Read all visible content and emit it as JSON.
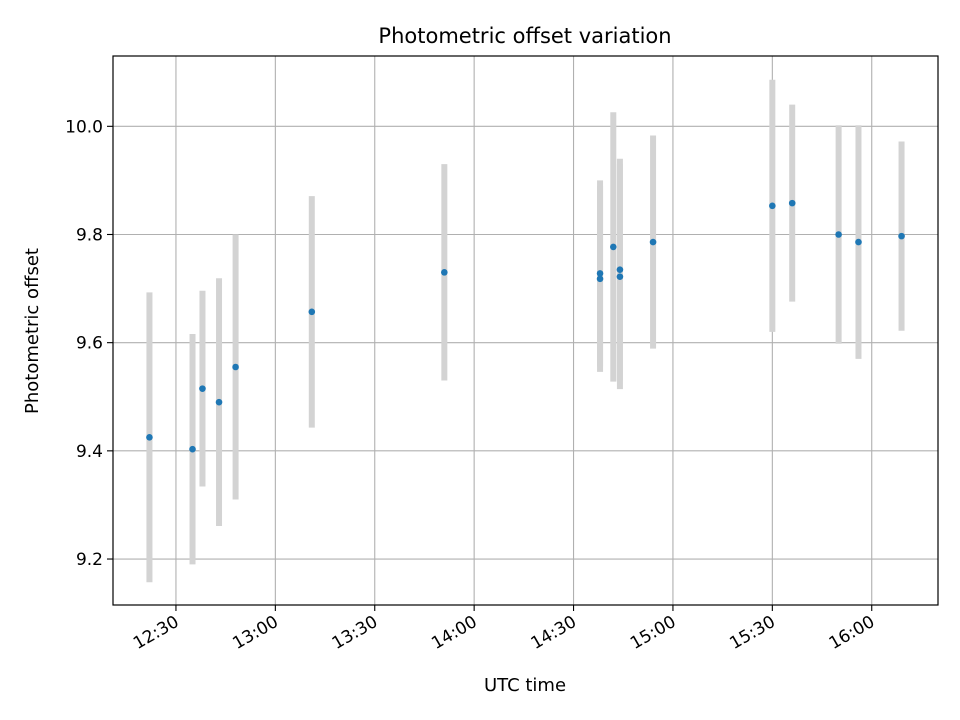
{
  "chart_data": {
    "type": "scatter",
    "title": "Photometric offset variation",
    "xlabel": "UTC time",
    "ylabel": "Photometric offset",
    "x_axis_type": "time",
    "xlim": [
      "12:11",
      "16:20"
    ],
    "ylim": [
      9.115,
      10.13
    ],
    "grid": true,
    "x_ticks": [
      "12:30",
      "13:00",
      "13:30",
      "14:00",
      "14:30",
      "15:00",
      "15:30",
      "16:00"
    ],
    "y_ticks": [
      "9.2",
      "9.4",
      "9.6",
      "9.8",
      "10.0"
    ],
    "colors": {
      "point": "#1f77b4",
      "errorbar": "#d3d3d3",
      "grid": "#b0b0b0"
    },
    "points": [
      {
        "x": "12:22",
        "y": 9.425,
        "err": 0.268
      },
      {
        "x": "12:35",
        "y": 9.403,
        "err": 0.213
      },
      {
        "x": "12:38",
        "y": 9.515,
        "err": 0.181
      },
      {
        "x": "12:43",
        "y": 9.49,
        "err": 0.229
      },
      {
        "x": "12:48",
        "y": 9.555,
        "err": 0.245
      },
      {
        "x": "13:11",
        "y": 9.657,
        "err": 0.214
      },
      {
        "x": "13:51",
        "y": 9.73,
        "err": 0.2
      },
      {
        "x": "14:38",
        "y": 9.718,
        "err": 0.172
      },
      {
        "x": "14:38",
        "y": 9.728,
        "err": 0.172
      },
      {
        "x": "14:42",
        "y": 9.777,
        "err": 0.249
      },
      {
        "x": "14:44",
        "y": 9.722,
        "err": 0.208
      },
      {
        "x": "14:44",
        "y": 9.735,
        "err": 0.205
      },
      {
        "x": "14:54",
        "y": 9.786,
        "err": 0.197
      },
      {
        "x": "15:30",
        "y": 9.853,
        "err": 0.233
      },
      {
        "x": "15:36",
        "y": 9.858,
        "err": 0.182
      },
      {
        "x": "15:50",
        "y": 9.8,
        "err": 0.202
      },
      {
        "x": "15:56",
        "y": 9.786,
        "err": 0.216
      },
      {
        "x": "16:09",
        "y": 9.797,
        "err": 0.175
      }
    ]
  }
}
